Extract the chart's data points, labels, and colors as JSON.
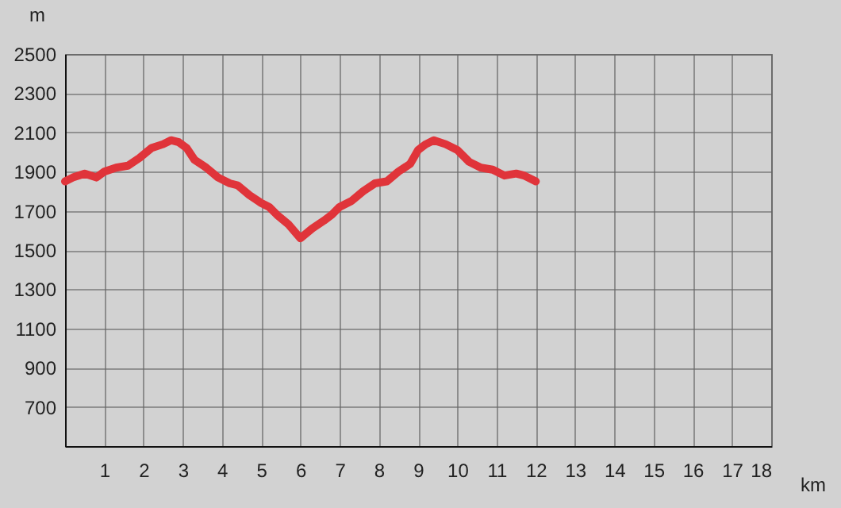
{
  "chart_data": {
    "type": "line",
    "xlabel": "km",
    "ylabel": "m",
    "x": [
      0,
      0.2,
      0.5,
      0.8,
      1,
      1.3,
      1.6,
      1.9,
      2.2,
      2.5,
      2.7,
      2.9,
      3.1,
      3.3,
      3.6,
      3.9,
      4.2,
      4.4,
      4.7,
      5,
      5.2,
      5.4,
      5.7,
      6,
      6.3,
      6.6,
      6.8,
      7,
      7.3,
      7.6,
      7.9,
      8.2,
      8.5,
      8.8,
      9,
      9.2,
      9.4,
      9.7,
      10,
      10.3,
      10.6,
      10.9,
      11.2,
      11.5,
      11.7,
      12
    ],
    "series": [
      {
        "color": "#e0343a",
        "values": [
          1850,
          1870,
          1890,
          1870,
          1900,
          1920,
          1930,
          1970,
          2020,
          2040,
          2060,
          2050,
          2020,
          1960,
          1920,
          1870,
          1840,
          1830,
          1780,
          1740,
          1720,
          1680,
          1630,
          1560,
          1610,
          1650,
          1680,
          1720,
          1750,
          1800,
          1840,
          1850,
          1900,
          1940,
          2010,
          2040,
          2060,
          2040,
          2010,
          1950,
          1920,
          1910,
          1880,
          1890,
          1880,
          1850
        ]
      }
    ],
    "xlim": [
      0,
      18
    ],
    "xticks": [
      1,
      2,
      3,
      4,
      5,
      6,
      7,
      8,
      9,
      10,
      11,
      12,
      13,
      14,
      15,
      16,
      17,
      18
    ],
    "ylim": [
      500,
      2500
    ],
    "yticks": [
      700,
      900,
      1100,
      1300,
      1500,
      1700,
      1900,
      2100,
      2300,
      2500
    ],
    "grid": true,
    "marker": "none",
    "line_style": "solid"
  }
}
